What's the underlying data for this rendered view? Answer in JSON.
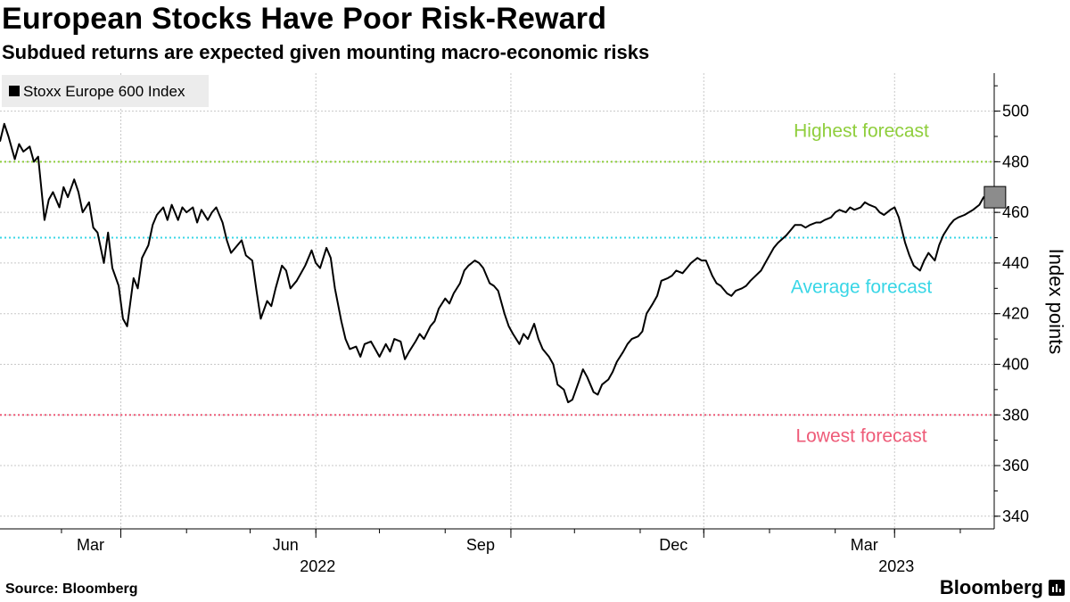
{
  "header": {
    "title": "European Stocks Have Poor Risk-Reward",
    "subtitle": "Subdued returns are expected given mounting macro-economic risks"
  },
  "footer": {
    "source": "Source: Bloomberg",
    "brand": "Bloomberg"
  },
  "chart_data": {
    "type": "line",
    "ylabel": "Index points",
    "ylim": [
      335,
      515
    ],
    "yticks": [
      340,
      360,
      380,
      400,
      420,
      440,
      460,
      480,
      500
    ],
    "xlim": [
      "2022-01-03",
      "2023-04-17"
    ],
    "x_month_ticks": [
      {
        "date": "2022-03-01",
        "label": "Mar"
      },
      {
        "date": "2022-06-01",
        "label": "Jun"
      },
      {
        "date": "2022-09-01",
        "label": "Sep"
      },
      {
        "date": "2022-12-01",
        "label": "Dec"
      },
      {
        "date": "2023-03-01",
        "label": "Mar"
      }
    ],
    "x_year_labels": [
      {
        "date": "2022-06-01",
        "label": "2022"
      },
      {
        "date": "2023-03-01",
        "label": "2023"
      }
    ],
    "x_gridlines": [
      "2022-03-01",
      "2022-06-01",
      "2022-09-01",
      "2022-12-01",
      "2023-03-01"
    ],
    "grid": true,
    "legend": {
      "position": "top-left",
      "entries": [
        "Stoxx Europe 600 Index"
      ]
    },
    "reference_lines": [
      {
        "label": "Highest forecast",
        "value": 480,
        "color": "#8fce3c"
      },
      {
        "label": "Average forecast",
        "value": 450,
        "color": "#38d6e6"
      },
      {
        "label": "Lowest forecast",
        "value": 380,
        "color": "#ee5b78"
      }
    ],
    "last_value_marker": {
      "date": "2023-04-14",
      "value": 466
    },
    "series": [
      {
        "name": "Stoxx Europe 600 Index",
        "color": "#000000",
        "points": [
          [
            "2022-01-03",
            488
          ],
          [
            "2022-01-05",
            495
          ],
          [
            "2022-01-07",
            490
          ],
          [
            "2022-01-10",
            481
          ],
          [
            "2022-01-12",
            487
          ],
          [
            "2022-01-14",
            484
          ],
          [
            "2022-01-17",
            486
          ],
          [
            "2022-01-19",
            480
          ],
          [
            "2022-01-21",
            482
          ],
          [
            "2022-01-24",
            457
          ],
          [
            "2022-01-26",
            465
          ],
          [
            "2022-01-28",
            468
          ],
          [
            "2022-01-31",
            462
          ],
          [
            "2022-02-02",
            470
          ],
          [
            "2022-02-04",
            466
          ],
          [
            "2022-02-07",
            473
          ],
          [
            "2022-02-09",
            468
          ],
          [
            "2022-02-11",
            460
          ],
          [
            "2022-02-14",
            464
          ],
          [
            "2022-02-16",
            454
          ],
          [
            "2022-02-18",
            452
          ],
          [
            "2022-02-21",
            440
          ],
          [
            "2022-02-23",
            452
          ],
          [
            "2022-02-25",
            438
          ],
          [
            "2022-02-28",
            431
          ],
          [
            "2022-03-02",
            418
          ],
          [
            "2022-03-04",
            415
          ],
          [
            "2022-03-07",
            434
          ],
          [
            "2022-03-09",
            430
          ],
          [
            "2022-03-11",
            442
          ],
          [
            "2022-03-14",
            447
          ],
          [
            "2022-03-16",
            455
          ],
          [
            "2022-03-18",
            459
          ],
          [
            "2022-03-21",
            462
          ],
          [
            "2022-03-23",
            457
          ],
          [
            "2022-03-25",
            463
          ],
          [
            "2022-03-28",
            457
          ],
          [
            "2022-03-30",
            462
          ],
          [
            "2022-04-01",
            460
          ],
          [
            "2022-04-04",
            462
          ],
          [
            "2022-04-06",
            456
          ],
          [
            "2022-04-08",
            461
          ],
          [
            "2022-04-11",
            457
          ],
          [
            "2022-04-13",
            460
          ],
          [
            "2022-04-15",
            462
          ],
          [
            "2022-04-18",
            456
          ],
          [
            "2022-04-20",
            449
          ],
          [
            "2022-04-22",
            444
          ],
          [
            "2022-04-25",
            447
          ],
          [
            "2022-04-27",
            449
          ],
          [
            "2022-04-29",
            443
          ],
          [
            "2022-05-02",
            441
          ],
          [
            "2022-05-04",
            429
          ],
          [
            "2022-05-06",
            418
          ],
          [
            "2022-05-09",
            425
          ],
          [
            "2022-05-11",
            423
          ],
          [
            "2022-05-13",
            430
          ],
          [
            "2022-05-16",
            439
          ],
          [
            "2022-05-18",
            437
          ],
          [
            "2022-05-20",
            430
          ],
          [
            "2022-05-23",
            433
          ],
          [
            "2022-05-25",
            436
          ],
          [
            "2022-05-27",
            439
          ],
          [
            "2022-05-30",
            445
          ],
          [
            "2022-06-01",
            440
          ],
          [
            "2022-06-03",
            438
          ],
          [
            "2022-06-06",
            446
          ],
          [
            "2022-06-08",
            442
          ],
          [
            "2022-06-10",
            430
          ],
          [
            "2022-06-13",
            417
          ],
          [
            "2022-06-15",
            410
          ],
          [
            "2022-06-17",
            406
          ],
          [
            "2022-06-20",
            407
          ],
          [
            "2022-06-22",
            403
          ],
          [
            "2022-06-24",
            408
          ],
          [
            "2022-06-27",
            409
          ],
          [
            "2022-06-29",
            406
          ],
          [
            "2022-07-01",
            403
          ],
          [
            "2022-07-04",
            408
          ],
          [
            "2022-07-06",
            405
          ],
          [
            "2022-07-08",
            410
          ],
          [
            "2022-07-11",
            409
          ],
          [
            "2022-07-13",
            402
          ],
          [
            "2022-07-15",
            405
          ],
          [
            "2022-07-18",
            409
          ],
          [
            "2022-07-20",
            412
          ],
          [
            "2022-07-22",
            410
          ],
          [
            "2022-07-25",
            415
          ],
          [
            "2022-07-27",
            417
          ],
          [
            "2022-07-29",
            422
          ],
          [
            "2022-08-01",
            426
          ],
          [
            "2022-08-03",
            424
          ],
          [
            "2022-08-05",
            428
          ],
          [
            "2022-08-08",
            432
          ],
          [
            "2022-08-10",
            437
          ],
          [
            "2022-08-12",
            439
          ],
          [
            "2022-08-15",
            441
          ],
          [
            "2022-08-17",
            440
          ],
          [
            "2022-08-19",
            438
          ],
          [
            "2022-08-22",
            432
          ],
          [
            "2022-08-24",
            431
          ],
          [
            "2022-08-26",
            429
          ],
          [
            "2022-08-29",
            420
          ],
          [
            "2022-08-31",
            415
          ],
          [
            "2022-09-02",
            412
          ],
          [
            "2022-09-05",
            408
          ],
          [
            "2022-09-07",
            412
          ],
          [
            "2022-09-09",
            410
          ],
          [
            "2022-09-12",
            416
          ],
          [
            "2022-09-14",
            410
          ],
          [
            "2022-09-16",
            406
          ],
          [
            "2022-09-19",
            403
          ],
          [
            "2022-09-21",
            400
          ],
          [
            "2022-09-23",
            392
          ],
          [
            "2022-09-26",
            390
          ],
          [
            "2022-09-28",
            385
          ],
          [
            "2022-09-30",
            386
          ],
          [
            "2022-10-03",
            393
          ],
          [
            "2022-10-05",
            398
          ],
          [
            "2022-10-07",
            395
          ],
          [
            "2022-10-10",
            389
          ],
          [
            "2022-10-12",
            388
          ],
          [
            "2022-10-14",
            392
          ],
          [
            "2022-10-17",
            394
          ],
          [
            "2022-10-19",
            397
          ],
          [
            "2022-10-21",
            401
          ],
          [
            "2022-10-24",
            405
          ],
          [
            "2022-10-26",
            408
          ],
          [
            "2022-10-28",
            410
          ],
          [
            "2022-10-31",
            411
          ],
          [
            "2022-11-02",
            413
          ],
          [
            "2022-11-04",
            420
          ],
          [
            "2022-11-07",
            424
          ],
          [
            "2022-11-09",
            427
          ],
          [
            "2022-11-11",
            433
          ],
          [
            "2022-11-14",
            434
          ],
          [
            "2022-11-16",
            435
          ],
          [
            "2022-11-18",
            437
          ],
          [
            "2022-11-21",
            436
          ],
          [
            "2022-11-23",
            438
          ],
          [
            "2022-11-25",
            440
          ],
          [
            "2022-11-28",
            442
          ],
          [
            "2022-11-30",
            441
          ],
          [
            "2022-12-02",
            441
          ],
          [
            "2022-12-05",
            435
          ],
          [
            "2022-12-07",
            432
          ],
          [
            "2022-12-09",
            431
          ],
          [
            "2022-12-12",
            428
          ],
          [
            "2022-12-14",
            427
          ],
          [
            "2022-12-16",
            429
          ],
          [
            "2022-12-19",
            430
          ],
          [
            "2022-12-21",
            431
          ],
          [
            "2022-12-23",
            433
          ],
          [
            "2022-12-28",
            437
          ],
          [
            "2022-12-30",
            440
          ],
          [
            "2023-01-03",
            446
          ],
          [
            "2023-01-05",
            448
          ],
          [
            "2023-01-09",
            451
          ],
          [
            "2023-01-11",
            453
          ],
          [
            "2023-01-13",
            455
          ],
          [
            "2023-01-16",
            455
          ],
          [
            "2023-01-18",
            454
          ],
          [
            "2023-01-20",
            455
          ],
          [
            "2023-01-23",
            456
          ],
          [
            "2023-01-25",
            456
          ],
          [
            "2023-01-27",
            457
          ],
          [
            "2023-01-30",
            458
          ],
          [
            "2023-02-01",
            460
          ],
          [
            "2023-02-03",
            461
          ],
          [
            "2023-02-06",
            460
          ],
          [
            "2023-02-08",
            462
          ],
          [
            "2023-02-10",
            461
          ],
          [
            "2023-02-13",
            462
          ],
          [
            "2023-02-15",
            464
          ],
          [
            "2023-02-17",
            463
          ],
          [
            "2023-02-20",
            462
          ],
          [
            "2023-02-22",
            460
          ],
          [
            "2023-02-24",
            459
          ],
          [
            "2023-02-27",
            461
          ],
          [
            "2023-03-01",
            462
          ],
          [
            "2023-03-03",
            458
          ],
          [
            "2023-03-06",
            448
          ],
          [
            "2023-03-08",
            443
          ],
          [
            "2023-03-10",
            439
          ],
          [
            "2023-03-13",
            437
          ],
          [
            "2023-03-15",
            441
          ],
          [
            "2023-03-17",
            444
          ],
          [
            "2023-03-20",
            441
          ],
          [
            "2023-03-22",
            447
          ],
          [
            "2023-03-24",
            451
          ],
          [
            "2023-03-27",
            455
          ],
          [
            "2023-03-29",
            457
          ],
          [
            "2023-03-31",
            458
          ],
          [
            "2023-04-03",
            459
          ],
          [
            "2023-04-05",
            460
          ],
          [
            "2023-04-07",
            461
          ],
          [
            "2023-04-10",
            463
          ],
          [
            "2023-04-12",
            466
          ],
          [
            "2023-04-14",
            466
          ],
          [
            "2023-04-17",
            465
          ]
        ]
      }
    ]
  }
}
